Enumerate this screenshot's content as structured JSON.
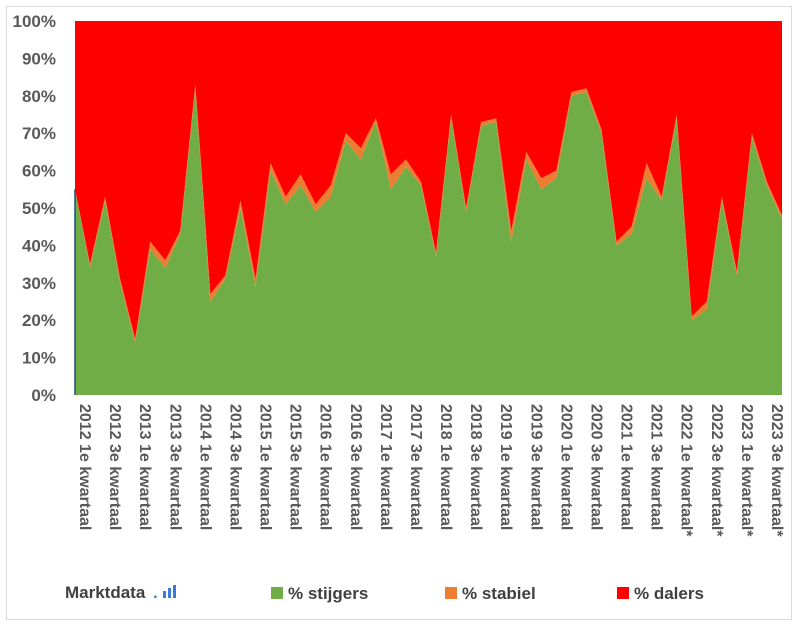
{
  "brand": {
    "name": "Marktdata",
    "dot": ".",
    "icon": "bar-chart-icon",
    "color": "#3a7bd5"
  },
  "chart_data": {
    "type": "area",
    "stacked_percent": true,
    "title": "",
    "xlabel": "",
    "ylabel": "",
    "ylim": [
      0,
      100
    ],
    "yticks": [
      "0%",
      "10%",
      "20%",
      "30%",
      "40%",
      "50%",
      "60%",
      "70%",
      "80%",
      "90%",
      "100%"
    ],
    "xtick_labels": [
      "2012 1e kwartaal",
      "2012 3e kwartaal",
      "2013 1e kwartaal",
      "2013 3e kwartaal",
      "2014 1e kwartaal",
      "2014 3e kwartaal",
      "2015 1e kwartaal",
      "2015 3e kwartaal",
      "2016 1e kwartaal",
      "2016 3e kwartaal",
      "2017 1e kwartaal",
      "2017 3e kwartaal",
      "2018 1e kwartaal",
      "2018 3e kwartaal",
      "2019 1e kwartaal",
      "2019 3e kwartaal",
      "2020 1e kwartaal",
      "2020 3e kwartaal",
      "2021 1e kwartaal",
      "2021 3e kwartaal",
      "2022 1e kwartaal*",
      "2022 3e kwartaal*",
      "2023 1e kwartaal*",
      "2023 3e kwartaal*"
    ],
    "legend_position": "bottom",
    "series": [
      {
        "name": "% stijgers",
        "color": "#70ad47",
        "values": [
          55,
          34,
          52,
          30,
          14,
          39,
          34,
          43,
          82,
          25,
          31,
          50,
          29,
          60,
          51,
          56,
          49,
          53,
          68,
          63,
          73,
          55,
          61,
          56,
          37,
          74,
          49,
          72,
          73,
          41,
          63,
          55,
          58,
          80,
          81,
          70,
          40,
          43,
          58,
          52,
          74,
          20,
          23,
          52,
          32,
          69,
          56,
          47
        ]
      },
      {
        "name": "% stabiel",
        "color": "#ed7d31",
        "values": [
          0,
          1,
          1,
          1,
          1,
          2,
          2,
          1,
          1,
          2,
          1,
          2,
          2,
          2,
          2,
          3,
          2,
          3,
          2,
          3,
          1,
          4,
          2,
          1,
          1,
          1,
          1,
          1,
          1,
          3,
          2,
          3,
          2,
          1,
          1,
          1,
          1,
          2,
          4,
          1,
          1,
          1,
          2,
          1,
          1,
          1,
          1,
          1
        ]
      },
      {
        "name": "% dalers",
        "color": "#ff0000",
        "values": [
          45,
          65,
          47,
          69,
          85,
          59,
          64,
          56,
          17,
          73,
          68,
          48,
          69,
          38,
          47,
          41,
          49,
          44,
          30,
          34,
          26,
          41,
          37,
          43,
          62,
          25,
          50,
          27,
          26,
          56,
          35,
          42,
          40,
          19,
          18,
          29,
          59,
          55,
          38,
          47,
          25,
          79,
          75,
          47,
          67,
          30,
          43,
          52
        ]
      }
    ]
  }
}
